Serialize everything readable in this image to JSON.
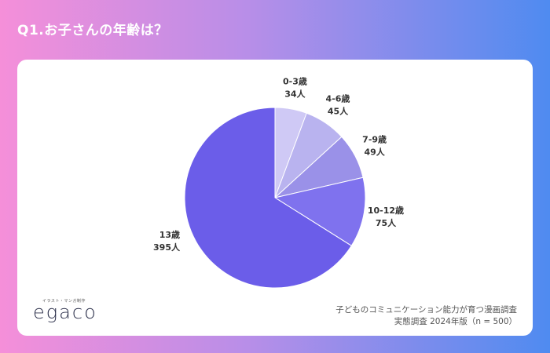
{
  "title": "Q1.お子さんの年齢は？",
  "logo": {
    "tagline": "イラスト・マンガ制作",
    "text": "egaco"
  },
  "source": {
    "line1": "子どものコミュニケーション能力が育つ漫画調査",
    "line2": "実態調査 2024年版（n = 500）"
  },
  "colors": {
    "background_left": "#f58fd9",
    "background_right": "#4f8bf0",
    "card": "#ffffff"
  },
  "chart_data": {
    "type": "pie",
    "title": "Q1.お子さんの年齢は？",
    "start": "top, clockwise",
    "slices": [
      {
        "label": "0-3歳",
        "value": 34,
        "value_label": "34人",
        "color": "#cfc9f5"
      },
      {
        "label": "4-6歳",
        "value": 45,
        "value_label": "45人",
        "color": "#b9b3ef"
      },
      {
        "label": "7-9歳",
        "value": 49,
        "value_label": "49人",
        "color": "#9a91e8"
      },
      {
        "label": "10-12歳",
        "value": 75,
        "value_label": "75人",
        "color": "#7f72ee"
      },
      {
        "label": "13歳",
        "value": 395,
        "value_label": "395人",
        "color": "#6b5de9"
      }
    ]
  }
}
